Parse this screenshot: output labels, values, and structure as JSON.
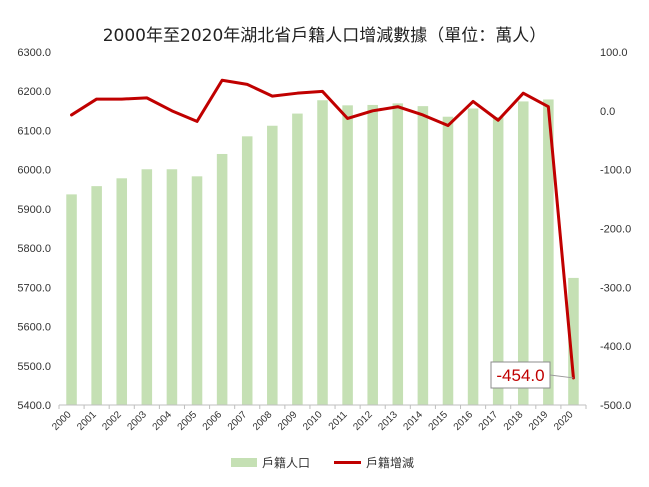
{
  "chart_data": {
    "type": "bar",
    "title": "2000年至2020年湖北省戶籍人口增減數據（單位：萬人）",
    "categories": [
      "2000",
      "2001",
      "2002",
      "2003",
      "2004",
      "2005",
      "2006",
      "2007",
      "2008",
      "2009",
      "2010",
      "2011",
      "2012",
      "2013",
      "2014",
      "2015",
      "2016",
      "2017",
      "2018",
      "2019",
      "2020"
    ],
    "y_left": {
      "min": 5400,
      "max": 6300,
      "ticks": [
        "5400.0",
        "5500.0",
        "5600.0",
        "5700.0",
        "5800.0",
        "5900.0",
        "6000.0",
        "6100.0",
        "6200.0",
        "6300.0"
      ],
      "grid": false
    },
    "y_right": {
      "min": -500,
      "max": 100,
      "ticks": [
        "-500.0",
        "-400.0",
        "-300.0",
        "-200.0",
        "-100.0",
        "0.0",
        "100.0"
      ]
    },
    "series": [
      {
        "name": "戶籍人口",
        "type": "bar",
        "axis": "left",
        "color": "#c5e0b4",
        "values": [
          5937,
          5958,
          5978,
          6001,
          6001,
          5983,
          6040,
          6085,
          6112,
          6143,
          6177,
          6164,
          6165,
          6169,
          6162,
          6135,
          6156,
          6134,
          6174,
          6179,
          5724
        ]
      },
      {
        "name": "戶籍增減",
        "type": "line",
        "axis": "right",
        "color": "#c00000",
        "values": [
          -7,
          20,
          20,
          22,
          0,
          -18,
          52,
          45,
          25,
          30,
          33,
          -13,
          0,
          7,
          -7,
          -25,
          16,
          -16,
          30,
          7,
          -454
        ]
      }
    ],
    "annotation": {
      "text": "-454.0",
      "category": "2020",
      "series": "戶籍增減"
    },
    "legend": "bottom"
  }
}
